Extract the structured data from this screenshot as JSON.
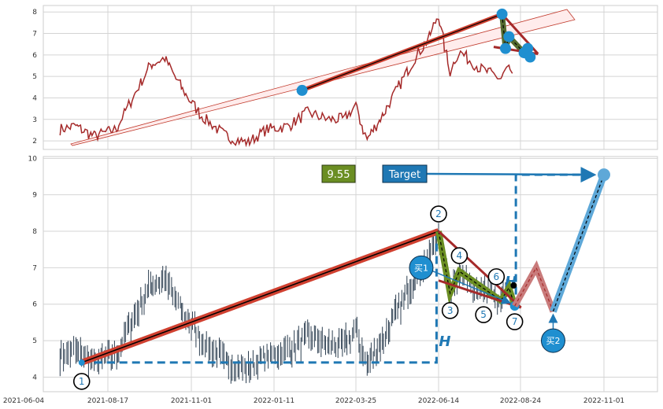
{
  "chart_data": [
    {
      "type": "line",
      "name": "top-panel",
      "ylim": [
        1.6,
        8.3
      ],
      "yticks": [
        "2",
        "3",
        "4",
        "5",
        "6",
        "7",
        "8"
      ],
      "grid": true,
      "series_color": "#a52a2a",
      "trend_start_point": {
        "x": "2022-02-05",
        "y": 4.35
      },
      "pattern_points": [
        {
          "x": "2022-08-08",
          "y": 7.9
        },
        {
          "x": "2022-08-11",
          "y": 6.3
        },
        {
          "x": "2022-08-14",
          "y": 6.85
        },
        {
          "x": "2022-08-27",
          "y": 6.1
        },
        {
          "x": "2022-08-30",
          "y": 6.3
        },
        {
          "x": "2022-09-01",
          "y": 5.9
        }
      ]
    },
    {
      "type": "candlestick",
      "name": "bottom-panel",
      "ylim": [
        3.6,
        10.05
      ],
      "yticks": [
        "4",
        "5",
        "6",
        "7",
        "8",
        "9",
        "10"
      ],
      "grid": true,
      "x_dates": [
        "2021-06-04",
        "2021-08-17",
        "2021-11-01",
        "2022-01-11",
        "2022-03-25",
        "2022-06-14",
        "2022-08-24",
        "2022-11-01"
      ],
      "price_label": "9.55",
      "target_label": "Target",
      "buy_labels": [
        "买1",
        "买2"
      ],
      "height_label": "H",
      "wave_points": [
        {
          "label": "1",
          "x": "2021-07-25",
          "y": 4.4
        },
        {
          "label": "2",
          "x": "2022-06-14",
          "y": 8.0
        },
        {
          "label": "3",
          "x": "2022-06-24",
          "y": 6.3
        },
        {
          "label": "4",
          "x": "2022-07-02",
          "y": 6.9
        },
        {
          "label": "5",
          "x": "2022-08-07",
          "y": 6.1
        },
        {
          "label": "6",
          "x": "2022-08-14",
          "y": 6.45
        },
        {
          "label": "7",
          "x": "2022-08-19",
          "y": 5.95
        }
      ],
      "target_point": {
        "x": "2022-11-01",
        "y": 9.55
      },
      "buy2_point": {
        "x": "2022-09-20",
        "y": 5.8
      }
    }
  ]
}
